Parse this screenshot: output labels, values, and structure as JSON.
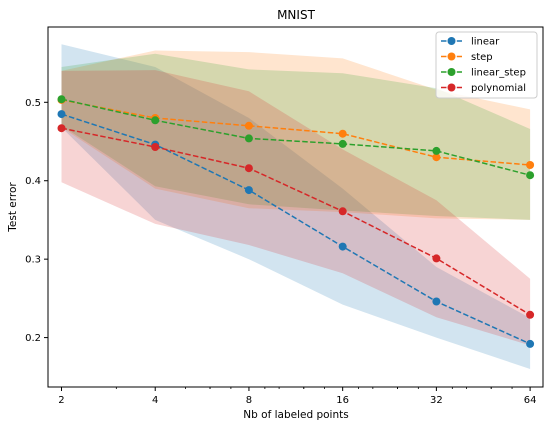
{
  "chart_data": {
    "type": "line",
    "title": "MNIST",
    "xlabel": "Nb of labeled points",
    "ylabel": "Test error",
    "x_scale": "log2",
    "x": [
      2,
      4,
      8,
      16,
      32,
      64
    ],
    "x_ticks": [
      "2",
      "4",
      "8",
      "16",
      "32",
      "64"
    ],
    "xlim": [
      1.81,
      70.4
    ],
    "ylim": [
      0.137,
      0.596
    ],
    "y_ticks": [
      0.2,
      0.3,
      0.4,
      0.5
    ],
    "y_tick_labels": [
      "0.2",
      "0.3",
      "0.4",
      "0.5"
    ],
    "grid": false,
    "legend_position": "top-right",
    "line_style": "dashed",
    "markers": "circle",
    "band_opacity": 0.2,
    "series": [
      {
        "name": "linear",
        "color": "#1f77b4",
        "values": [
          0.485,
          0.446,
          0.388,
          0.316,
          0.246,
          0.192
        ],
        "lower": [
          0.468,
          0.35,
          0.3,
          0.242,
          0.2,
          0.16
        ],
        "upper": [
          0.574,
          0.545,
          0.48,
          0.39,
          0.29,
          0.225
        ]
      },
      {
        "name": "step",
        "color": "#ff7f0e",
        "values": [
          0.503,
          0.48,
          0.47,
          0.46,
          0.43,
          0.42
        ],
        "lower": [
          0.468,
          0.39,
          0.365,
          0.36,
          0.352,
          0.35
        ],
        "upper": [
          0.54,
          0.566,
          0.564,
          0.556,
          0.516,
          0.491
        ]
      },
      {
        "name": "linear_step",
        "color": "#2ca02c",
        "values": [
          0.504,
          0.477,
          0.454,
          0.447,
          0.438,
          0.407
        ],
        "lower": [
          0.47,
          0.393,
          0.37,
          0.362,
          0.355,
          0.35
        ],
        "upper": [
          0.545,
          0.562,
          0.542,
          0.537,
          0.518,
          0.466
        ]
      },
      {
        "name": "polynomial",
        "color": "#d62728",
        "values": [
          0.467,
          0.443,
          0.416,
          0.361,
          0.301,
          0.229
        ],
        "lower": [
          0.398,
          0.345,
          0.318,
          0.282,
          0.226,
          0.19
        ],
        "upper": [
          0.54,
          0.541,
          0.514,
          0.44,
          0.375,
          0.275
        ]
      }
    ]
  }
}
